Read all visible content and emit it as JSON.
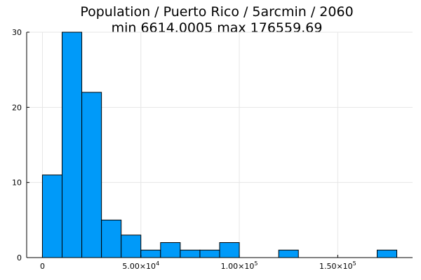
{
  "chart_data": {
    "type": "bar",
    "title": "Population / Puerto Rico / 5arcmin / 2060",
    "subtitle": "min 6614.0005  max 176559.69",
    "xlabel": "",
    "ylabel": "",
    "bin_width": 10000,
    "bins": [
      {
        "x0": 0,
        "x1": 10000,
        "value": 11
      },
      {
        "x0": 10000,
        "x1": 20000,
        "value": 30
      },
      {
        "x0": 20000,
        "x1": 30000,
        "value": 22
      },
      {
        "x0": 30000,
        "x1": 40000,
        "value": 5
      },
      {
        "x0": 40000,
        "x1": 50000,
        "value": 3
      },
      {
        "x0": 50000,
        "x1": 60000,
        "value": 1
      },
      {
        "x0": 60000,
        "x1": 70000,
        "value": 2
      },
      {
        "x0": 70000,
        "x1": 80000,
        "value": 1
      },
      {
        "x0": 80000,
        "x1": 90000,
        "value": 1
      },
      {
        "x0": 90000,
        "x1": 100000,
        "value": 2
      },
      {
        "x0": 100000,
        "x1": 110000,
        "value": 0
      },
      {
        "x0": 110000,
        "x1": 120000,
        "value": 0
      },
      {
        "x0": 120000,
        "x1": 130000,
        "value": 1
      },
      {
        "x0": 130000,
        "x1": 140000,
        "value": 0
      },
      {
        "x0": 140000,
        "x1": 150000,
        "value": 0
      },
      {
        "x0": 150000,
        "x1": 160000,
        "value": 0
      },
      {
        "x0": 160000,
        "x1": 170000,
        "value": 0
      },
      {
        "x0": 170000,
        "x1": 180000,
        "value": 1
      }
    ],
    "xlim": [
      -8000,
      188000
    ],
    "ylim": [
      0,
      30
    ],
    "x_ticks": [
      {
        "value": 0,
        "label": "0"
      },
      {
        "value": 50000,
        "label": "5.00×10",
        "exp": "4"
      },
      {
        "value": 100000,
        "label": "1.00×10",
        "exp": "5"
      },
      {
        "value": 150000,
        "label": "1.50×10",
        "exp": "5"
      }
    ],
    "y_ticks": [
      {
        "value": 0,
        "label": "0"
      },
      {
        "value": 10,
        "label": "10"
      },
      {
        "value": 20,
        "label": "20"
      },
      {
        "value": 30,
        "label": "30"
      }
    ],
    "grid": true,
    "legend": "none",
    "colors": {
      "bar": "#009af9",
      "grid": "#e6e6e6",
      "axis": "#000000"
    }
  }
}
